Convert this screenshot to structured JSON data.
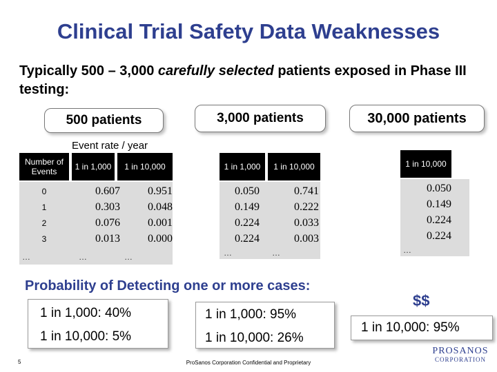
{
  "title": "Clinical Trial Safety Data Weaknesses",
  "subtitle": {
    "part1": "Typically 500 – 3,000 ",
    "emphasis": "carefully selected",
    "part2": " patients exposed in Phase III testing:"
  },
  "groups": {
    "g500": "500 patients",
    "g3000": "3,000 patients",
    "g30000": "30,000 patients"
  },
  "event_rate_label": "Event rate / year",
  "table1": {
    "col_number": "Number of Events",
    "col_1000": "1 in 1,000",
    "col_10000": "1 in 10,000",
    "rows": [
      "0",
      "1",
      "2",
      "3"
    ],
    "ellipsis": "…",
    "values_1000": [
      "0.607",
      "0.303",
      "0.076",
      "0.013"
    ],
    "values_10000": [
      "0.951",
      "0.048",
      "0.001",
      "0.000"
    ]
  },
  "table2": {
    "col_1000": "1 in 1,000",
    "col_10000": "1 in 10,000",
    "values_1000": [
      "0.050",
      "0.149",
      "0.224",
      "0.224"
    ],
    "values_10000": [
      "0.741",
      "0.222",
      "0.033",
      "0.003"
    ],
    "ellipsis": "…"
  },
  "table3": {
    "col_10000": "1 in 10,000",
    "values_10000": [
      "0.050",
      "0.149",
      "0.224",
      "0.224"
    ],
    "ellipsis": "…"
  },
  "probability_title": "Probability of Detecting one or more cases:",
  "results": {
    "r500_1000": "1 in 1,000:  40%",
    "r500_10000": "1 in 10,000:  5%",
    "r3000_1000": "1 in 1,000:  95%",
    "r3000_10000": "1 in 10,000:  26%",
    "r30000_10000": "1 in 10,000:  95%",
    "dollars": "$$"
  },
  "footer": {
    "page_number": "5",
    "confidential": "ProSanos Corporation Confidential and Proprietary",
    "logo_line1": "PROSANOS",
    "logo_line2": "CORPORATION"
  },
  "colors": {
    "title": "#2e3f8f",
    "table_header": "#000000",
    "table_body": "#dcdcdc"
  }
}
